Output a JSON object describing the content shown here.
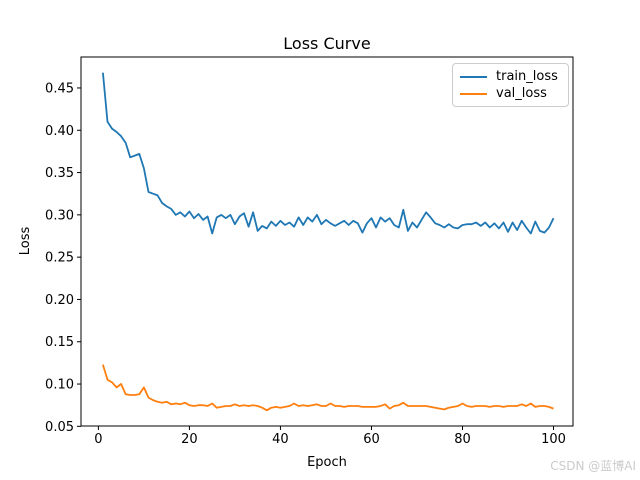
{
  "figure": {
    "watermark": "CSDN @蓝博AI"
  },
  "chart_data": {
    "type": "line",
    "title": "Loss Curve",
    "xlabel": "Epoch",
    "ylabel": "Loss",
    "grid": false,
    "legend_position": "upper right",
    "xlim": [
      -3.82,
      104.28
    ],
    "ylim": [
      0.0504,
      0.4866
    ],
    "x_tick_values": [
      0,
      20,
      40,
      60,
      80,
      100
    ],
    "x_tick_labels": [
      "0",
      "20",
      "40",
      "60",
      "80",
      "100"
    ],
    "y_tick_values": [
      0.05,
      0.1,
      0.15,
      0.2,
      0.25,
      0.3,
      0.35,
      0.4,
      0.45
    ],
    "y_tick_labels": [
      "0.05",
      "0.10",
      "0.15",
      "0.20",
      "0.25",
      "0.30",
      "0.35",
      "0.40",
      "0.45"
    ],
    "x": [
      1,
      2,
      3,
      4,
      5,
      6,
      7,
      8,
      9,
      10,
      11,
      12,
      13,
      14,
      15,
      16,
      17,
      18,
      19,
      20,
      21,
      22,
      23,
      24,
      25,
      26,
      27,
      28,
      29,
      30,
      31,
      32,
      33,
      34,
      35,
      36,
      37,
      38,
      39,
      40,
      41,
      42,
      43,
      44,
      45,
      46,
      47,
      48,
      49,
      50,
      51,
      52,
      53,
      54,
      55,
      56,
      57,
      58,
      59,
      60,
      61,
      62,
      63,
      64,
      65,
      66,
      67,
      68,
      69,
      70,
      71,
      72,
      73,
      74,
      75,
      76,
      77,
      78,
      79,
      80,
      81,
      82,
      83,
      84,
      85,
      86,
      87,
      88,
      89,
      90,
      91,
      92,
      93,
      94,
      95,
      96,
      97,
      98,
      99,
      100
    ],
    "series": [
      {
        "name": "train_loss",
        "color": "#1f77b4",
        "values": [
          0.468,
          0.41,
          0.402,
          0.398,
          0.393,
          0.385,
          0.368,
          0.37,
          0.372,
          0.355,
          0.327,
          0.325,
          0.323,
          0.314,
          0.31,
          0.307,
          0.3,
          0.303,
          0.298,
          0.304,
          0.296,
          0.301,
          0.294,
          0.298,
          0.278,
          0.297,
          0.3,
          0.296,
          0.3,
          0.289,
          0.298,
          0.302,
          0.286,
          0.303,
          0.281,
          0.287,
          0.284,
          0.292,
          0.287,
          0.293,
          0.288,
          0.291,
          0.286,
          0.297,
          0.288,
          0.297,
          0.292,
          0.3,
          0.289,
          0.294,
          0.29,
          0.287,
          0.29,
          0.293,
          0.288,
          0.293,
          0.29,
          0.279,
          0.29,
          0.296,
          0.285,
          0.297,
          0.292,
          0.296,
          0.288,
          0.285,
          0.306,
          0.281,
          0.291,
          0.285,
          0.294,
          0.303,
          0.297,
          0.29,
          0.288,
          0.285,
          0.289,
          0.285,
          0.284,
          0.288,
          0.289,
          0.289,
          0.291,
          0.287,
          0.291,
          0.285,
          0.29,
          0.284,
          0.291,
          0.28,
          0.291,
          0.282,
          0.293,
          0.285,
          0.278,
          0.292,
          0.281,
          0.279,
          0.285,
          0.296
        ]
      },
      {
        "name": "val_loss",
        "color": "#ff7f0e",
        "values": [
          0.123,
          0.105,
          0.102,
          0.096,
          0.1,
          0.088,
          0.087,
          0.087,
          0.088,
          0.096,
          0.084,
          0.081,
          0.079,
          0.078,
          0.079,
          0.076,
          0.077,
          0.076,
          0.078,
          0.075,
          0.074,
          0.075,
          0.075,
          0.074,
          0.077,
          0.072,
          0.073,
          0.074,
          0.074,
          0.076,
          0.074,
          0.075,
          0.074,
          0.075,
          0.074,
          0.072,
          0.069,
          0.072,
          0.073,
          0.072,
          0.073,
          0.074,
          0.077,
          0.074,
          0.075,
          0.074,
          0.075,
          0.076,
          0.074,
          0.074,
          0.077,
          0.074,
          0.074,
          0.073,
          0.074,
          0.074,
          0.074,
          0.073,
          0.073,
          0.073,
          0.073,
          0.074,
          0.076,
          0.071,
          0.074,
          0.075,
          0.078,
          0.074,
          0.074,
          0.074,
          0.074,
          0.074,
          0.073,
          0.072,
          0.071,
          0.07,
          0.072,
          0.073,
          0.074,
          0.077,
          0.074,
          0.073,
          0.074,
          0.074,
          0.074,
          0.073,
          0.074,
          0.074,
          0.073,
          0.074,
          0.074,
          0.074,
          0.076,
          0.074,
          0.077,
          0.073,
          0.074,
          0.074,
          0.073,
          0.071
        ]
      }
    ]
  }
}
